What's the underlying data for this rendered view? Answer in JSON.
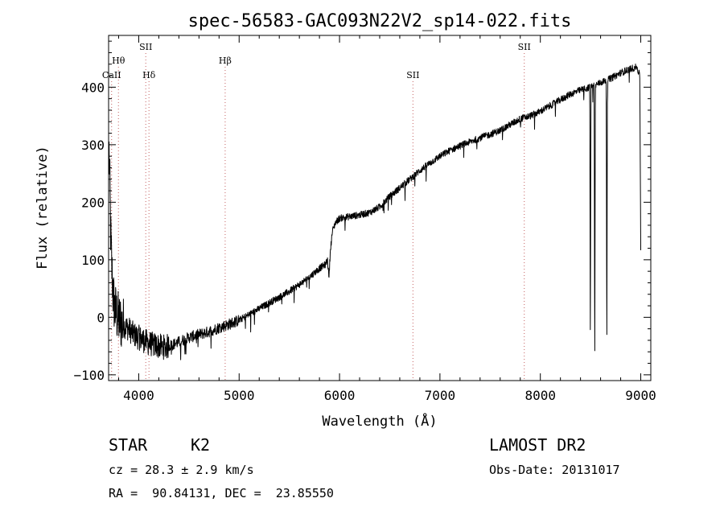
{
  "chart_data": {
    "type": "line",
    "title": "spec-56583-GAC093N22V2_sp14-022.fits",
    "xlabel": "Wavelength (Å)",
    "ylabel": "Flux (relative)",
    "xlim": [
      3700,
      9100
    ],
    "ylim": [
      -110,
      490
    ],
    "xticks": [
      4000,
      5000,
      6000,
      7000,
      8000,
      9000
    ],
    "yticks": [
      -100,
      0,
      100,
      200,
      300,
      400
    ],
    "xtick_labels": [
      "4000",
      "5000",
      "6000",
      "7000",
      "8000",
      "9000"
    ],
    "ytick_labels": [
      "−100",
      "0",
      "100",
      "200",
      "300",
      "400"
    ],
    "grid": false,
    "line_color": "#000000",
    "marker_color": "#c46060",
    "lines": [
      {
        "label": "CaII",
        "x": 3730,
        "row": 2
      },
      {
        "label": "Hθ",
        "x": 3798,
        "row": 1
      },
      {
        "label": "SII",
        "x": 4070,
        "row": 0
      },
      {
        "label": "Hδ",
        "x": 4102,
        "row": 2
      },
      {
        "label": "Hβ",
        "x": 4861,
        "row": 1
      },
      {
        "label": "SII",
        "x": 6731,
        "row": 2
      },
      {
        "label": "SII",
        "x": 7840,
        "row": 0
      }
    ],
    "anchors": [
      [
        3705,
        290
      ],
      [
        3712,
        230
      ],
      [
        3720,
        150
      ],
      [
        3732,
        85
      ],
      [
        3745,
        40
      ],
      [
        3760,
        15
      ],
      [
        3780,
        5
      ],
      [
        3800,
        -5
      ],
      [
        3830,
        -10
      ],
      [
        3860,
        -15
      ],
      [
        3900,
        -20
      ],
      [
        3950,
        -30
      ],
      [
        4000,
        -35
      ],
      [
        4050,
        -40
      ],
      [
        4100,
        -45
      ],
      [
        4150,
        -48
      ],
      [
        4200,
        -50
      ],
      [
        4260,
        -52
      ],
      [
        4300,
        -50
      ],
      [
        4400,
        -43
      ],
      [
        4500,
        -35
      ],
      [
        4600,
        -30
      ],
      [
        4700,
        -25
      ],
      [
        4800,
        -18
      ],
      [
        4900,
        -12
      ],
      [
        5000,
        -5
      ],
      [
        5100,
        5
      ],
      [
        5200,
        15
      ],
      [
        5300,
        25
      ],
      [
        5400,
        35
      ],
      [
        5500,
        45
      ],
      [
        5600,
        57
      ],
      [
        5700,
        70
      ],
      [
        5800,
        85
      ],
      [
        5860,
        92
      ],
      [
        5880,
        100
      ],
      [
        5895,
        70
      ],
      [
        5910,
        120
      ],
      [
        5930,
        150
      ],
      [
        5960,
        165
      ],
      [
        6000,
        172
      ],
      [
        6100,
        175
      ],
      [
        6200,
        178
      ],
      [
        6300,
        182
      ],
      [
        6400,
        192
      ],
      [
        6500,
        210
      ],
      [
        6600,
        225
      ],
      [
        6700,
        240
      ],
      [
        6800,
        255
      ],
      [
        6900,
        268
      ],
      [
        7000,
        280
      ],
      [
        7100,
        290
      ],
      [
        7200,
        298
      ],
      [
        7300,
        305
      ],
      [
        7400,
        312
      ],
      [
        7500,
        318
      ],
      [
        7600,
        325
      ],
      [
        7700,
        335
      ],
      [
        7800,
        345
      ],
      [
        7900,
        350
      ],
      [
        8000,
        358
      ],
      [
        8100,
        368
      ],
      [
        8200,
        378
      ],
      [
        8300,
        388
      ],
      [
        8400,
        395
      ],
      [
        8500,
        400
      ],
      [
        8600,
        408
      ],
      [
        8700,
        415
      ],
      [
        8800,
        425
      ],
      [
        8900,
        432
      ],
      [
        8960,
        435
      ],
      [
        8990,
        420
      ],
      [
        9000,
        130
      ]
    ],
    "absorption": [
      [
        8498,
        -60
      ],
      [
        8542,
        -100
      ],
      [
        8662,
        -70
      ]
    ]
  },
  "footer": {
    "object_type": "STAR",
    "subclass": "K2",
    "survey": "LAMOST DR2",
    "cz": "cz = 28.3 ± 2.9 km/s",
    "obs_date": "Obs-Date: 20131017",
    "coords": "RA =  90.84131, DEC =  23.85550"
  }
}
